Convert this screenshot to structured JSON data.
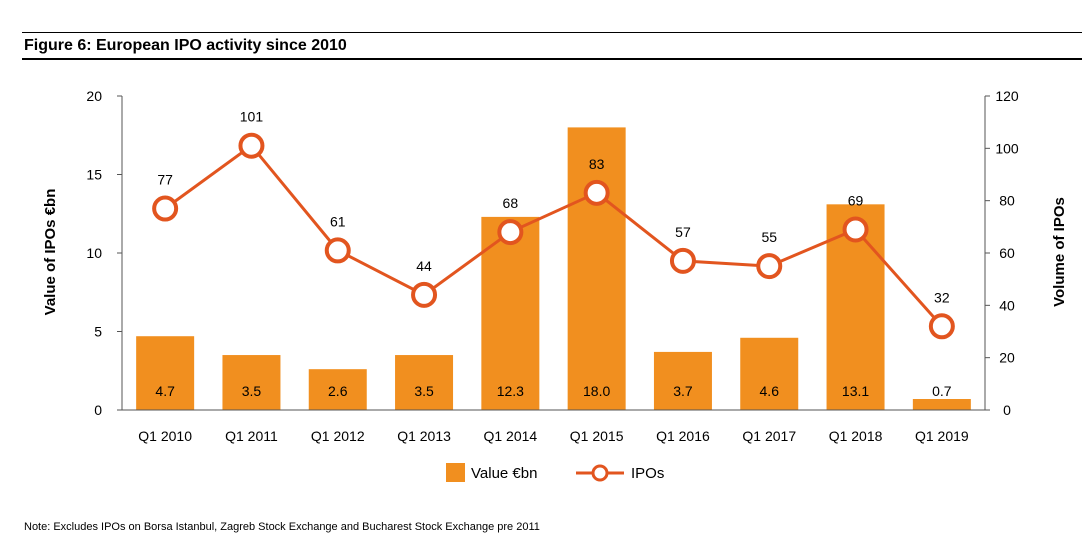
{
  "title": "Figure 6: European IPO activity since 2010",
  "note": "Note: Excludes IPOs on Borsa Istanbul, Zagreb Stock Exchange and Bucharest Stock Exchange pre 2011",
  "colors": {
    "bar": "#f18f1f",
    "line": "#e2551f",
    "marker_fill": "#ffffff",
    "axis": "#555555"
  },
  "chart_data": {
    "type": "bar",
    "categories": [
      "Q1 2010",
      "Q1 2011",
      "Q1 2012",
      "Q1 2013",
      "Q1 2014",
      "Q1 2015",
      "Q1 2016",
      "Q1 2017",
      "Q1 2018",
      "Q1 2019"
    ],
    "series": [
      {
        "name": "Value €bn",
        "type": "bar",
        "axis": "left",
        "values": [
          4.7,
          3.5,
          2.6,
          3.5,
          12.3,
          18.0,
          3.7,
          4.6,
          13.1,
          0.7
        ]
      },
      {
        "name": "IPOs",
        "type": "line",
        "axis": "right",
        "values": [
          77,
          101,
          61,
          44,
          68,
          83,
          57,
          55,
          69,
          32
        ]
      }
    ],
    "ylabel": "Value of IPOs €bn",
    "y2label": "Volume of IPOs",
    "ylim": [
      0,
      20
    ],
    "y2lim": [
      0,
      120
    ],
    "yticks": [
      0,
      5,
      10,
      15,
      20
    ],
    "y2ticks": [
      0,
      20,
      40,
      60,
      80,
      100,
      120
    ],
    "grid": false,
    "legend_position": "bottom-center"
  }
}
